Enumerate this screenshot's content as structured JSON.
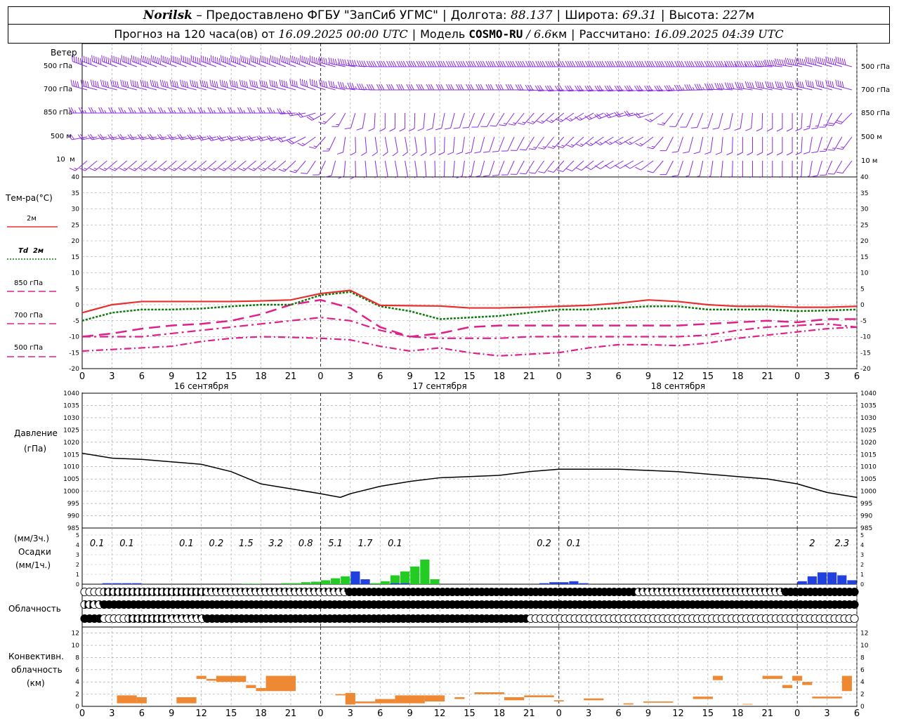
{
  "header": {
    "station": "Norilsk",
    "provider": "– Предоставлено ФГБУ \"ЗапСиб УГМС\"",
    "lon_label": "Долгота:",
    "lon": "88.137",
    "lat_label": "Широта:",
    "lat": "69.31",
    "alt_label": "Высота:",
    "alt": "227",
    "alt_unit": "м",
    "forecast_label": "Прогноз на 120 часа(ов) от",
    "forecast_time": "16.09.2025 00:00 UTC",
    "model_label": "Модель",
    "model": "COSMO-RU",
    "model_res": "/ 6.6",
    "model_res_unit": "км",
    "calc_label": "Рассчитано:",
    "calc_time": "16.09.2025 04:39 UTC"
  },
  "labels": {
    "wind": "Ветер",
    "wind_levels": [
      "500 гПа",
      "700 гПа",
      "850 гПа",
      "500 м",
      "10  м"
    ],
    "temp": "Тем-ра(°C)",
    "temp_legend": [
      "2м",
      "Td  2м",
      "850 гПа",
      "700 гПа",
      "500 гПа"
    ],
    "pressure": [
      "Давление",
      "(гПа)"
    ],
    "precip": [
      "(мм/3ч.)",
      "Осадки",
      "(мм/1ч.)"
    ],
    "clouds": "Облачность",
    "conv": [
      "Конвективн.",
      "облачность",
      "(км)"
    ]
  },
  "x_ticks": [
    "0",
    "3",
    "6",
    "9",
    "12",
    "15",
    "18",
    "21",
    "0",
    "3",
    "6",
    "9",
    "12",
    "15",
    "18",
    "21",
    "0",
    "3",
    "6",
    "9",
    "12",
    "15",
    "18",
    "21",
    "0",
    "3",
    "6"
  ],
  "day_labels": [
    "16 сентября",
    "17 сентября",
    "18 сентября"
  ],
  "colors": {
    "t2m": "#e83030",
    "td2m": "#0a7a0a",
    "t850": "#e0208a",
    "t700": "#e0208a",
    "t500": "#e0208a",
    "wind": "#8a2be2",
    "precip_rain": "#22cc22",
    "precip_blue": "#2040e0",
    "conv": "#ee8833",
    "pressure": "#000000"
  },
  "chart_data": [
    {
      "type": "line",
      "title": "Тем-ра(°C)",
      "x_hours": [
        0,
        3,
        6,
        9,
        12,
        15,
        18,
        21,
        24,
        27,
        30,
        33,
        36,
        39,
        42,
        45,
        48,
        51,
        54,
        57,
        60,
        63,
        66,
        69,
        72,
        75,
        78
      ],
      "ylim": [
        -20,
        40
      ],
      "y_ticks": [
        -20,
        -15,
        -10,
        -5,
        0,
        5,
        10,
        15,
        20,
        25,
        30,
        35,
        40
      ],
      "series": [
        {
          "name": "2м",
          "values": [
            -2.5,
            0,
            1,
            1,
            1,
            1,
            1.2,
            1.5,
            3.5,
            4.5,
            -0.2,
            -0.3,
            -0.4,
            -1,
            -1,
            -0.8,
            -0.5,
            -0.2,
            0.5,
            1.5,
            1,
            0,
            -0.5,
            -0.5,
            -0.8,
            -0.8,
            -0.5
          ]
        },
        {
          "name": "Td  2м",
          "values": [
            -5,
            -2.5,
            -1.5,
            -1.5,
            -1.2,
            -0.5,
            0,
            0,
            3,
            4,
            -0.5,
            -2,
            -4.5,
            -4,
            -3.5,
            -2.5,
            -1.5,
            -1.5,
            -1,
            -0.5,
            -0.5,
            -1.5,
            -1.5,
            -1.5,
            -2,
            -1.8,
            -1.5
          ]
        },
        {
          "name": "850 гПа",
          "values": [
            -10,
            -9,
            -7.5,
            -6.5,
            -6,
            -5,
            -3,
            0,
            1.5,
            -1,
            -7,
            -10,
            -9,
            -7,
            -6.5,
            -6.5,
            -6.5,
            -6.5,
            -6.5,
            -6.5,
            -6.5,
            -6,
            -5.5,
            -5,
            -5.5,
            -4.5,
            -4.5
          ]
        },
        {
          "name": "700 гПа",
          "values": [
            -10,
            -10,
            -10,
            -9,
            -8,
            -7,
            -6,
            -5,
            -4,
            -5,
            -8,
            -10,
            -10.5,
            -10.5,
            -10.5,
            -10,
            -10,
            -10,
            -10,
            -10,
            -10,
            -9.5,
            -8,
            -7,
            -6.5,
            -6,
            -7
          ]
        },
        {
          "name": "500 гПа",
          "values": [
            -14.5,
            -14,
            -13.5,
            -13,
            -11.5,
            -10.5,
            -10,
            -10.2,
            -10.5,
            -11,
            -13,
            -14.5,
            -13.5,
            -15,
            -16,
            -15.5,
            -15,
            -13.5,
            -12.5,
            -12.5,
            -12.8,
            -12,
            -10.5,
            -9.5,
            -8.5,
            -7.5,
            -7
          ]
        }
      ]
    },
    {
      "type": "line",
      "title": "Давление",
      "x_hours": [
        0,
        3,
        6,
        9,
        12,
        15,
        18,
        21,
        24,
        26,
        27,
        30,
        33,
        36,
        39,
        42,
        45,
        48,
        51,
        54,
        57,
        60,
        63,
        66,
        69,
        72,
        75,
        78
      ],
      "ylim": [
        985,
        1040
      ],
      "y_ticks": [
        985,
        990,
        995,
        1000,
        1005,
        1010,
        1015,
        1020,
        1025,
        1030,
        1035,
        1040
      ],
      "series": [
        {
          "name": "Давление",
          "values": [
            1015.5,
            1013.5,
            1013,
            1012,
            1011,
            1008,
            1003,
            1001,
            999,
            997.5,
            999,
            1002,
            1004,
            1005.5,
            1006,
            1006.5,
            1008,
            1009,
            1009,
            1009,
            1008.5,
            1008,
            1007,
            1006,
            1005,
            1003,
            999.5,
            997.5
          ]
        }
      ]
    },
    {
      "type": "bar",
      "title": "Осадки",
      "ylim": [
        0,
        5
      ],
      "y_ticks": [
        0,
        1,
        2,
        3,
        4,
        5
      ],
      "rain_hourly": [
        0,
        0,
        0,
        0,
        0,
        0,
        0.05,
        0.05,
        0,
        0,
        0.1,
        0.1,
        0.2,
        0.25,
        0.4,
        0.6,
        0.8,
        0.7,
        0.5,
        0.1,
        0.3,
        0.9,
        1.3,
        1.8,
        2.5,
        0.5,
        0,
        0
      ],
      "rain_start_hour": 10,
      "blue_bars": [
        {
          "h": 2,
          "v": 0.1
        },
        {
          "h": 3,
          "v": 0.1
        },
        {
          "h": 4,
          "v": 0.1
        },
        {
          "h": 5,
          "v": 0.1
        },
        {
          "h": 27,
          "v": 1.3
        },
        {
          "h": 28,
          "v": 0.5
        },
        {
          "h": 31,
          "v": 0.1
        },
        {
          "h": 32,
          "v": 0.1
        },
        {
          "h": 46,
          "v": 0.1
        },
        {
          "h": 47,
          "v": 0.2
        },
        {
          "h": 48,
          "v": 0.2
        },
        {
          "h": 49,
          "v": 0.3
        },
        {
          "h": 50,
          "v": 0.1
        },
        {
          "h": 72,
          "v": 0.3
        },
        {
          "h": 73,
          "v": 0.8
        },
        {
          "h": 74,
          "v": 1.2
        },
        {
          "h": 75,
          "v": 1.2
        },
        {
          "h": 76,
          "v": 0.9
        },
        {
          "h": 77,
          "v": 0.4
        }
      ],
      "totals_3h": [
        {
          "h": 1.5,
          "v": "0.1"
        },
        {
          "h": 4.5,
          "v": "0.1"
        },
        {
          "h": 10.5,
          "v": "0.1"
        },
        {
          "h": 13.5,
          "v": "0.2"
        },
        {
          "h": 16.5,
          "v": "1.5"
        },
        {
          "h": 19.5,
          "v": "3.2"
        },
        {
          "h": 22.5,
          "v": "0.8"
        },
        {
          "h": 25.5,
          "v": "5.1"
        },
        {
          "h": 28.5,
          "v": "1.7"
        },
        {
          "h": 31.5,
          "v": "0.1"
        },
        {
          "h": 46.5,
          "v": "0.2"
        },
        {
          "h": 49.5,
          "v": "0.1"
        },
        {
          "h": 73.5,
          "v": "2"
        },
        {
          "h": 76.5,
          "v": "2.3"
        }
      ]
    },
    {
      "type": "bar",
      "title": "Конвективн. облачность (км)",
      "ylim": [
        0,
        13
      ],
      "y_ticks": [
        0,
        2,
        4,
        6,
        8,
        10,
        12
      ],
      "bars": [
        {
          "h0": 3.5,
          "h1": 5.5,
          "bot": 0.5,
          "top": 1.8
        },
        {
          "h0": 5.5,
          "h1": 6.5,
          "bot": 0.5,
          "top": 1.5
        },
        {
          "h0": 9.5,
          "h1": 11.5,
          "bot": 0.5,
          "top": 1.5
        },
        {
          "h0": 11.5,
          "h1": 12.5,
          "bot": 4.5,
          "top": 5
        },
        {
          "h0": 12.5,
          "h1": 13.5,
          "bot": 4.2,
          "top": 4.5
        },
        {
          "h0": 13.5,
          "h1": 16.5,
          "bot": 4,
          "top": 5
        },
        {
          "h0": 16.5,
          "h1": 17.5,
          "bot": 3,
          "top": 3.5
        },
        {
          "h0": 17.5,
          "h1": 18.5,
          "bot": 2.5,
          "top": 3
        },
        {
          "h0": 18.5,
          "h1": 21.5,
          "bot": 2.5,
          "top": 5
        },
        {
          "h0": 25.5,
          "h1": 26.5,
          "bot": 1.8,
          "top": 2
        },
        {
          "h0": 26.5,
          "h1": 27.5,
          "bot": 0.3,
          "top": 2.2
        },
        {
          "h0": 27.5,
          "h1": 29.5,
          "bot": 0.5,
          "top": 0.8
        },
        {
          "h0": 29.5,
          "h1": 31.5,
          "bot": 0.5,
          "top": 1.2
        },
        {
          "h0": 31.5,
          "h1": 34.5,
          "bot": 0.5,
          "top": 1.8
        },
        {
          "h0": 34.5,
          "h1": 36.5,
          "bot": 0.8,
          "top": 1.8
        },
        {
          "h0": 37.5,
          "h1": 38.5,
          "bot": 1.2,
          "top": 1.5
        },
        {
          "h0": 39.5,
          "h1": 42.5,
          "bot": 2,
          "top": 2.3
        },
        {
          "h0": 42.5,
          "h1": 44.5,
          "bot": 1,
          "top": 1.5
        },
        {
          "h0": 44.5,
          "h1": 47.5,
          "bot": 1.5,
          "top": 1.8
        },
        {
          "h0": 47.5,
          "h1": 48.5,
          "bot": 0.8,
          "top": 1
        },
        {
          "h0": 50.5,
          "h1": 52.5,
          "bot": 1,
          "top": 1.3
        },
        {
          "h0": 54.5,
          "h1": 55.5,
          "bot": 0.3,
          "top": 0.5
        },
        {
          "h0": 56.5,
          "h1": 59.5,
          "bot": 0.6,
          "top": 0.8
        },
        {
          "h0": 61.5,
          "h1": 63.5,
          "bot": 1.2,
          "top": 1.6
        },
        {
          "h0": 63.5,
          "h1": 64.5,
          "bot": 4.3,
          "top": 5
        },
        {
          "h0": 66.5,
          "h1": 67.5,
          "bot": 0.3,
          "top": 0.4
        },
        {
          "h0": 68.5,
          "h1": 70.5,
          "bot": 4.5,
          "top": 5
        },
        {
          "h0": 70.5,
          "h1": 71.5,
          "bot": 3,
          "top": 3.5
        },
        {
          "h0": 71.5,
          "h1": 72.5,
          "bot": 4.2,
          "top": 5
        },
        {
          "h0": 72.5,
          "h1": 73.5,
          "bot": 3.5,
          "top": 4
        },
        {
          "h0": 73.5,
          "h1": 76.5,
          "bot": 1.3,
          "top": 1.6
        },
        {
          "h0": 76.5,
          "h1": 77.5,
          "bot": 2.5,
          "top": 5
        }
      ]
    },
    {
      "type": "table",
      "title": "Облачность",
      "rows": [
        "eeeehhhhhhhhhhhhhhhhhhhhhqqqqqqqqqqqqqqqqqqqqqqqqqqqqqfffffffffffffffffffffffffffffffffffffffffffffffffffffffffffqqqqqqqqqqqqqqqqqqqqqqqqqqqqqqfffffffffffffffffffffffffffffffffffffffffffffffffffffffffff",
        "hhqqffffffffffffffffffffffffffffffffffffffffffffffffffffffffffffffffffffffffffffffffffffffffffffffffffffffffffffffffffffffffffffffffffffffffffffffffffffffffffffffffffffffffffffffffffffffffffffff",
        "ffffeeeeehhhhhhhhqqqqqqqqffffffffffffffffffffffffffffffffffffffffffffffffffffffffffffffffffeeeeeeeeeeeeeeeeeeeeeeeeeeeeeeeeeeeeeeeeeeeeeeeeeeeeeeeeeeeeeeeeeeeeeffffffffffffffffffffffffffffff"
      ]
    },
    {
      "type": "scatter",
      "title": "Ветер",
      "levels": [
        "500 гПа",
        "700 гПа",
        "850 гПа",
        "500 м",
        "10  м"
      ],
      "note": "wind barbs",
      "dir_deg": [
        [
          290,
          290,
          290,
          290,
          290,
          290,
          290,
          290,
          290,
          280,
          270,
          270,
          270,
          270,
          270,
          270,
          270,
          270,
          270,
          270,
          270,
          270,
          270,
          270,
          280,
          285,
          285
        ],
        [
          285,
          285,
          285,
          285,
          285,
          285,
          285,
          285,
          290,
          280,
          270,
          270,
          270,
          270,
          270,
          270,
          265,
          265,
          265,
          265,
          265,
          270,
          275,
          280,
          280,
          285,
          285
        ],
        [
          270,
          270,
          270,
          270,
          270,
          270,
          270,
          270,
          250,
          200,
          180,
          180,
          190,
          200,
          210,
          220,
          230,
          240,
          250,
          260,
          210,
          200,
          190,
          180,
          180,
          200,
          230
        ],
        [
          260,
          260,
          260,
          260,
          260,
          255,
          255,
          255,
          230,
          180,
          170,
          170,
          180,
          190,
          200,
          210,
          220,
          230,
          240,
          240,
          200,
          190,
          180,
          180,
          180,
          200,
          220
        ],
        [
          230,
          230,
          230,
          230,
          230,
          230,
          230,
          230,
          210,
          180,
          170,
          170,
          180,
          190,
          200,
          210,
          220,
          230,
          240,
          240,
          200,
          190,
          180,
          180,
          180,
          200,
          220
        ]
      ],
      "speed_ms": [
        [
          25,
          25,
          25,
          25,
          25,
          25,
          25,
          25,
          25,
          22,
          20,
          20,
          20,
          20,
          20,
          20,
          20,
          20,
          20,
          20,
          20,
          20,
          22,
          24,
          25,
          25,
          25
        ],
        [
          20,
          20,
          20,
          20,
          20,
          20,
          20,
          20,
          20,
          18,
          16,
          16,
          16,
          16,
          16,
          16,
          16,
          16,
          16,
          16,
          16,
          18,
          20,
          20,
          20,
          20,
          20
        ],
        [
          12,
          12,
          12,
          12,
          12,
          12,
          12,
          12,
          10,
          6,
          5,
          5,
          5,
          6,
          6,
          7,
          8,
          8,
          9,
          10,
          6,
          5,
          5,
          5,
          5,
          8,
          10
        ],
        [
          10,
          10,
          10,
          10,
          10,
          10,
          10,
          10,
          8,
          5,
          4,
          4,
          4,
          5,
          5,
          6,
          7,
          7,
          8,
          8,
          5,
          4,
          4,
          4,
          4,
          6,
          8
        ],
        [
          7,
          7,
          7,
          7,
          7,
          7,
          7,
          7,
          6,
          4,
          3,
          3,
          3,
          4,
          4,
          5,
          5,
          5,
          6,
          6,
          4,
          3,
          3,
          3,
          3,
          4,
          6
        ]
      ]
    }
  ]
}
